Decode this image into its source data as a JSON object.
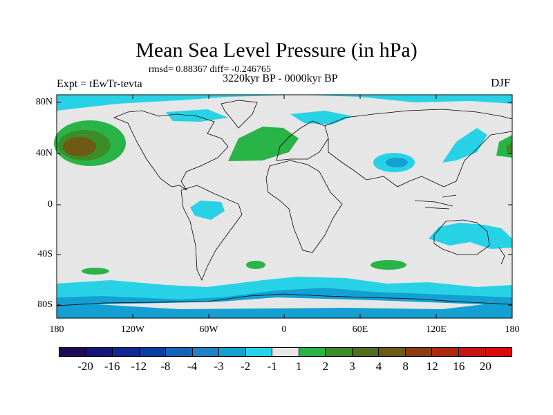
{
  "title": "Mean Sea Level Pressure (in hPa)",
  "stats": "rmsd= 0.88367 diff= -0.246765",
  "period": "3220kyr BP - 0000kyr BP",
  "experiment": "Expt = tEwTr-tevta",
  "season": "DJF",
  "axes": {
    "lat_labels": [
      "80N",
      "40N",
      "0",
      "40S",
      "80S"
    ],
    "lon_labels": [
      "180",
      "120W",
      "60W",
      "0",
      "60E",
      "120E",
      "180"
    ]
  },
  "colorbar": {
    "levels": [
      "-20",
      "-16",
      "-12",
      "-8",
      "-4",
      "-3",
      "-2",
      "-1",
      "1",
      "2",
      "3",
      "4",
      "8",
      "12",
      "16",
      "20"
    ],
    "colors": [
      "#1f0a55",
      "#14147a",
      "#0f2891",
      "#0a3ca5",
      "#1464b9",
      "#1e82c8",
      "#14a0d2",
      "#28d2e6",
      "#e6e6e6",
      "#28b446",
      "#3c8c28",
      "#506e1e",
      "#6e5a14",
      "#8c3c14",
      "#aa2814",
      "#c81414",
      "#dc0a0a"
    ]
  },
  "map_regions": {
    "ocean": "#e6e6e6",
    "low_minus1": "#28d2e6",
    "low_minus2": "#14a0d2",
    "low_minus3": "#1e82c8",
    "high_plus1": "#28b446",
    "high_plus2": "#3c8c28",
    "high_plus4": "#6e5a14"
  }
}
